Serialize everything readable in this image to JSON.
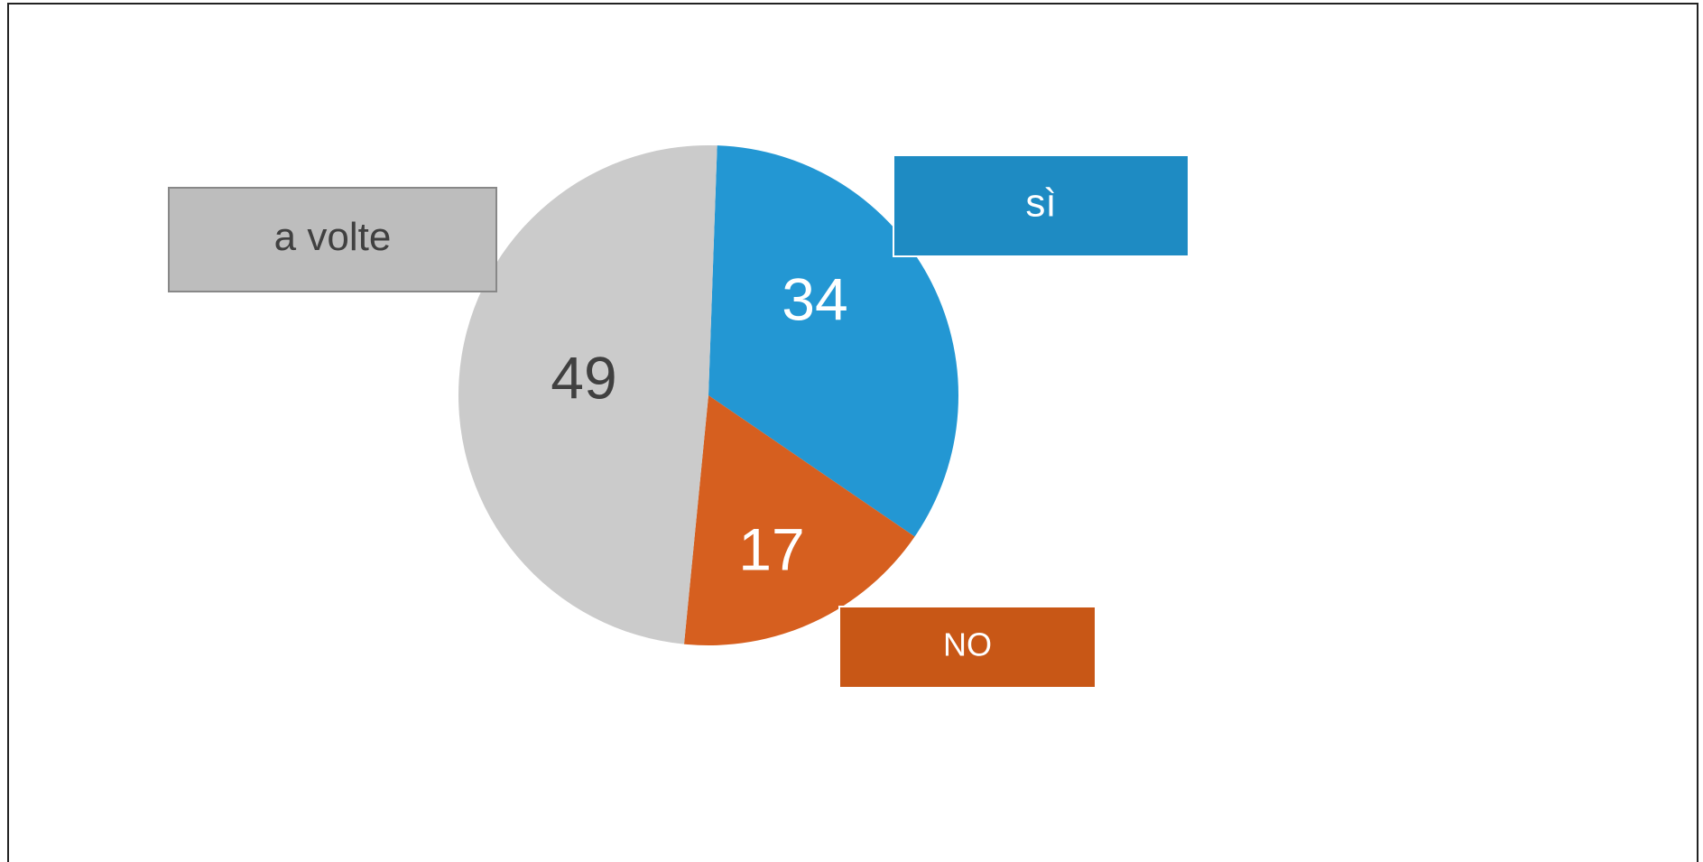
{
  "chart_data": {
    "type": "pie",
    "categories": [
      "sì",
      "NO",
      "a volte"
    ],
    "values": [
      34,
      17,
      49
    ],
    "colors": [
      "#2397d3",
      "#d65f1f",
      "#cbcbcb"
    ],
    "label_box_colors": [
      "#1e8bc3",
      "#c85716",
      "#bdbdbd"
    ]
  }
}
